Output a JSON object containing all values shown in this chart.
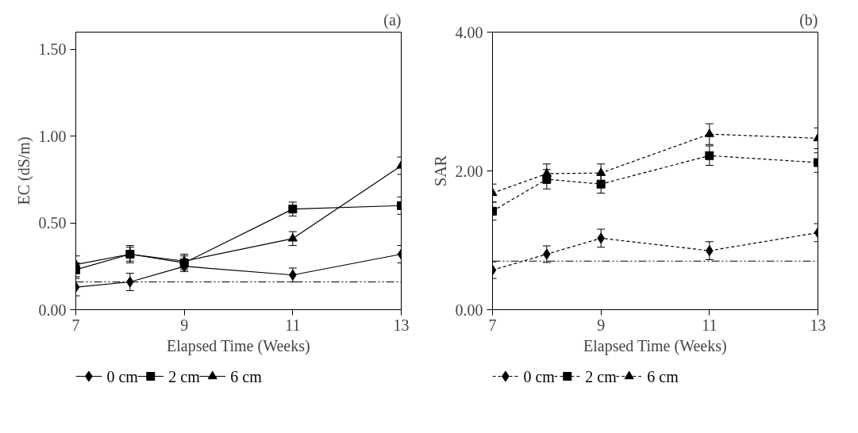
{
  "chart_data": [
    {
      "type": "line",
      "title": "(a)",
      "xlabel": "Elapsed Time (Weeks)",
      "ylabel": "EC (dS/m)",
      "x": [
        7,
        8,
        9,
        11,
        13
      ],
      "xlim": [
        7,
        13
      ],
      "xticks": [
        7,
        9,
        11,
        13
      ],
      "ylim": [
        0,
        1.6
      ],
      "yticks": [
        {
          "value": 0,
          "label": "0.00"
        },
        {
          "value": 0.5,
          "label": "0.50"
        },
        {
          "value": 1.0,
          "label": "1.00"
        },
        {
          "value": 1.5,
          "label": "1.50"
        }
      ],
      "grid": false,
      "legend": "bottom",
      "line_style": "solid",
      "series": [
        {
          "name": "0 cm",
          "color": "#000000",
          "marker": "diamond",
          "values": [
            0.13,
            0.16,
            0.25,
            0.2,
            0.32
          ],
          "errors": [
            0.05,
            0.05,
            0.03,
            0.04,
            0.05
          ]
        },
        {
          "name": "2 cm",
          "color": "#000000",
          "marker": "square",
          "values": [
            0.23,
            0.32,
            0.27,
            0.58,
            0.6
          ],
          "errors": [
            0.04,
            0.04,
            0.04,
            0.04,
            0.05
          ]
        },
        {
          "name": "6 cm",
          "color": "#000000",
          "marker": "triangle",
          "values": [
            0.26,
            0.32,
            0.28,
            0.41,
            0.83
          ],
          "errors": [
            0.05,
            0.05,
            0.04,
            0.04,
            0.05
          ]
        }
      ],
      "ref_lines": [
        {
          "axis": "y",
          "value": 0.16,
          "color": "#000000",
          "line_style": "dashdot"
        }
      ]
    },
    {
      "type": "line",
      "title": "(b)",
      "xlabel": "Elapsed Time (Weeks)",
      "ylabel": "SAR",
      "x": [
        7,
        8,
        9,
        11,
        13
      ],
      "xlim": [
        7,
        13
      ],
      "xticks": [
        7,
        9,
        11,
        13
      ],
      "ylim": [
        0,
        4
      ],
      "yticks": [
        {
          "value": 0,
          "label": "0.00"
        },
        {
          "value": 2,
          "label": "2.00"
        },
        {
          "value": 4,
          "label": "4.00"
        }
      ],
      "grid": false,
      "legend": "bottom",
      "line_style": "dashed",
      "series": [
        {
          "name": "0 cm",
          "color": "#000000",
          "marker": "diamond",
          "values": [
            0.57,
            0.8,
            1.03,
            0.85,
            1.11
          ],
          "errors": [
            0.12,
            0.12,
            0.13,
            0.13,
            0.13
          ]
        },
        {
          "name": "2 cm",
          "color": "#000000",
          "marker": "square",
          "values": [
            1.42,
            1.88,
            1.81,
            2.22,
            2.12
          ],
          "errors": [
            0.13,
            0.14,
            0.13,
            0.14,
            0.14
          ]
        },
        {
          "name": "6 cm",
          "color": "#000000",
          "marker": "triangle",
          "values": [
            1.68,
            1.96,
            1.97,
            2.53,
            2.47
          ],
          "errors": [
            0.13,
            0.14,
            0.13,
            0.15,
            0.15
          ]
        }
      ],
      "ref_lines": [
        {
          "axis": "y",
          "value": 0.7,
          "color": "#000000",
          "line_style": "dashdot"
        }
      ]
    }
  ]
}
